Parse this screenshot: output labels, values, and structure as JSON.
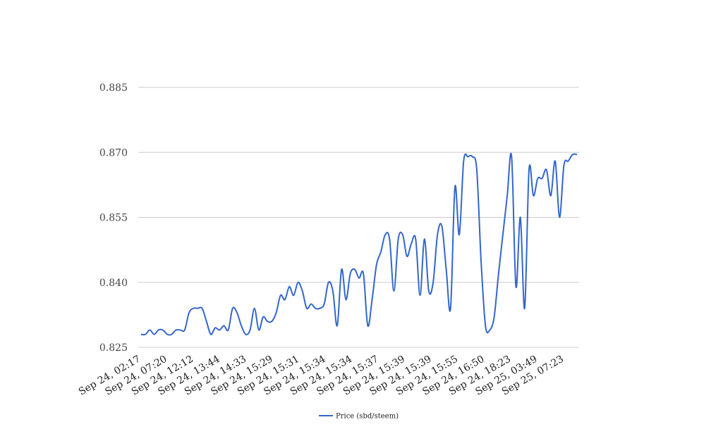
{
  "chart_data": {
    "type": "line",
    "title": "",
    "xlabel": "",
    "ylabel": "",
    "ylim": [
      0.825,
      0.885
    ],
    "yticks": [
      "0.825",
      "0.840",
      "0.855",
      "0.870",
      "0.885"
    ],
    "ytick_values": [
      0.825,
      0.84,
      0.855,
      0.87,
      0.885
    ],
    "x_tick_labels": [
      "Sep 24, 02:17",
      "Sep 24, 07:20",
      "Sep 24, 12:12",
      "Sep 24, 13:44",
      "Sep 24, 14:33",
      "Sep 24, 15:29",
      "Sep 24, 15:31",
      "Sep 24, 15:34",
      "Sep 24, 15:34",
      "Sep 24, 15:37",
      "Sep 24, 15:39",
      "Sep 24, 15:39",
      "Sep 24, 15:55",
      "Sep 24, 16:50",
      "Sep 24, 18:23",
      "Sep 25, 03:49",
      "Sep 25, 07:23"
    ],
    "grid": true,
    "legend_position": "bottom",
    "series": [
      {
        "name": "Price (sbd/steem)",
        "color": "#3366cc",
        "values": [
          0.828,
          0.828,
          0.829,
          0.828,
          0.829,
          0.829,
          0.828,
          0.828,
          0.829,
          0.829,
          0.829,
          0.833,
          0.834,
          0.834,
          0.834,
          0.831,
          0.828,
          0.8295,
          0.829,
          0.83,
          0.829,
          0.834,
          0.833,
          0.83,
          0.828,
          0.829,
          0.834,
          0.829,
          0.832,
          0.831,
          0.831,
          0.833,
          0.837,
          0.836,
          0.839,
          0.837,
          0.84,
          0.838,
          0.834,
          0.835,
          0.834,
          0.834,
          0.835,
          0.84,
          0.838,
          0.83,
          0.843,
          0.836,
          0.842,
          0.843,
          0.841,
          0.842,
          0.83,
          0.836,
          0.844,
          0.847,
          0.851,
          0.85,
          0.838,
          0.85,
          0.851,
          0.846,
          0.849,
          0.85,
          0.837,
          0.85,
          0.838,
          0.84,
          0.851,
          0.853,
          0.843,
          0.834,
          0.862,
          0.851,
          0.868,
          0.869,
          0.869,
          0.866,
          0.845,
          0.83,
          0.829,
          0.832,
          0.842,
          0.851,
          0.86,
          0.869,
          0.839,
          0.855,
          0.834,
          0.866,
          0.86,
          0.864,
          0.864,
          0.866,
          0.86,
          0.868,
          0.855,
          0.867,
          0.868,
          0.8695,
          0.8695
        ]
      }
    ]
  }
}
